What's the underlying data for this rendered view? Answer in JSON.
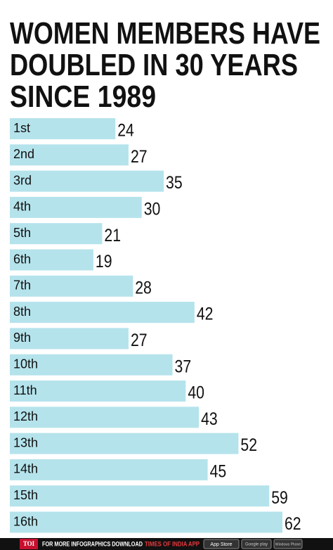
{
  "chart_data": {
    "type": "bar",
    "orientation": "horizontal",
    "title": [
      "WOMEN MEMBERS HAVE",
      "DOUBLED IN 30 YEARS",
      "SINCE 1989"
    ],
    "categories": [
      "1st",
      "2nd",
      "3rd",
      "4th",
      "5th",
      "6th",
      "7th",
      "8th",
      "9th",
      "10th",
      "11th",
      "12th",
      "13th",
      "14th",
      "15th",
      "16th"
    ],
    "values": [
      24,
      27,
      35,
      30,
      21,
      19,
      28,
      42,
      27,
      37,
      40,
      43,
      52,
      45,
      59,
      62
    ],
    "color": "#b5e3ec"
  },
  "footer": {
    "brand": "TOI",
    "text": "FOR MORE  INFOGRAPHICS DOWNLOAD",
    "app": "TIMES OF INDIA  APP",
    "badges": [
      "App Store",
      "Google play",
      "Windows Phone"
    ]
  }
}
